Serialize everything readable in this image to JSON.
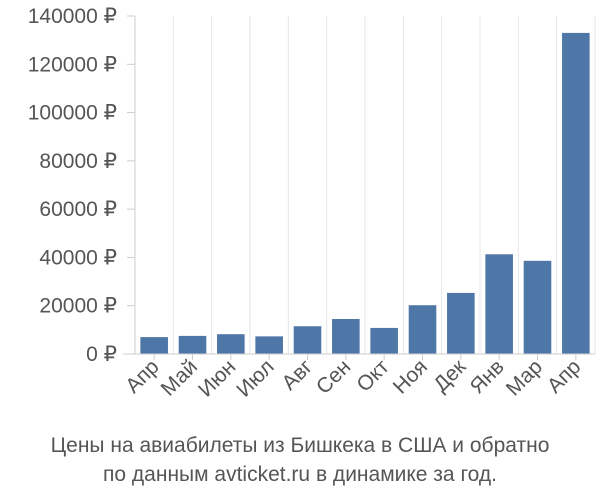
{
  "chart_data": {
    "type": "bar",
    "categories": [
      "Апр",
      "Май",
      "Июн",
      "Июл",
      "Авг",
      "Сен",
      "Окт",
      "Ноя",
      "Дек",
      "Янв",
      "Мар",
      "Апр"
    ],
    "values": [
      7000,
      7500,
      8200,
      7300,
      11500,
      14500,
      10800,
      20200,
      25300,
      41300,
      38600,
      133000
    ],
    "ylim": [
      0,
      140000
    ],
    "yticks": [
      0,
      20000,
      40000,
      60000,
      80000,
      100000,
      120000,
      140000
    ],
    "ytick_labels": [
      "0 ₽",
      "20000 ₽",
      "40000 ₽",
      "60000 ₽",
      "80000 ₽",
      "100000 ₽",
      "120000 ₽",
      "140000 ₽"
    ],
    "bar_color": "#4e77a8",
    "grid": "vertical gridlines"
  },
  "caption": {
    "line1": "Цены на авиабилеты из Бишкека в США и обратно",
    "line2": "по данным avticket.ru в динамике за год."
  }
}
